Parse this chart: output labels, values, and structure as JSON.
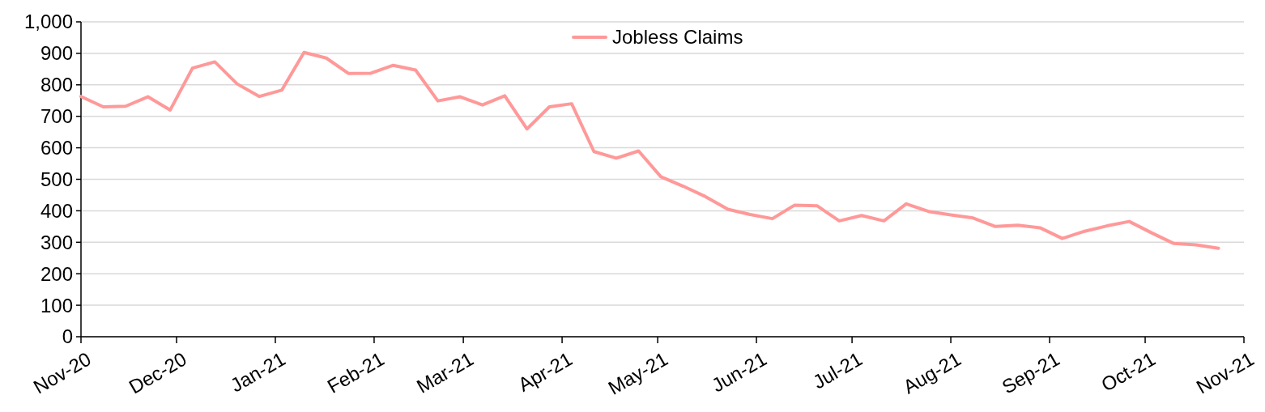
{
  "chart_data": {
    "type": "line",
    "x": [
      "2020-11-01",
      "2020-11-08",
      "2020-11-15",
      "2020-11-22",
      "2020-11-29",
      "2020-12-06",
      "2020-12-13",
      "2020-12-20",
      "2020-12-27",
      "2021-01-03",
      "2021-01-10",
      "2021-01-17",
      "2021-01-24",
      "2021-01-31",
      "2021-02-07",
      "2021-02-14",
      "2021-02-21",
      "2021-02-28",
      "2021-03-07",
      "2021-03-14",
      "2021-03-21",
      "2021-03-28",
      "2021-04-04",
      "2021-04-11",
      "2021-04-18",
      "2021-04-25",
      "2021-05-02",
      "2021-05-09",
      "2021-05-16",
      "2021-05-23",
      "2021-05-30",
      "2021-06-06",
      "2021-06-13",
      "2021-06-20",
      "2021-06-27",
      "2021-07-04",
      "2021-07-11",
      "2021-07-18",
      "2021-07-25",
      "2021-08-01",
      "2021-08-08",
      "2021-08-15",
      "2021-08-22",
      "2021-08-29",
      "2021-09-05",
      "2021-09-12",
      "2021-09-19",
      "2021-09-26",
      "2021-10-03",
      "2021-10-10",
      "2021-10-17",
      "2021-10-24"
    ],
    "series": [
      {
        "name": "Jobless Claims",
        "color": "#ff9999",
        "values": [
          763,
          730,
          732,
          762,
          720,
          853,
          873,
          803,
          763,
          783,
          903,
          885,
          836,
          837,
          862,
          847,
          749,
          762,
          736,
          765,
          660,
          730,
          740,
          588,
          567,
          590,
          508,
          478,
          445,
          405,
          388,
          375,
          418,
          416,
          368,
          385,
          368,
          422,
          398,
          387,
          377,
          350,
          354,
          346,
          312,
          335,
          352,
          366,
          330,
          296,
          292,
          281
        ]
      }
    ],
    "xlim": [
      "2020-11-01",
      "2021-11-01"
    ],
    "xticks": [
      {
        "value": "2020-11-01",
        "label": "Nov-20"
      },
      {
        "value": "2020-12-01",
        "label": "Dec-20"
      },
      {
        "value": "2021-01-01",
        "label": "Jan-21"
      },
      {
        "value": "2021-02-01",
        "label": "Feb-21"
      },
      {
        "value": "2021-03-01",
        "label": "Mar-21"
      },
      {
        "value": "2021-04-01",
        "label": "Apr-21"
      },
      {
        "value": "2021-05-01",
        "label": "May-21"
      },
      {
        "value": "2021-06-01",
        "label": "Jun-21"
      },
      {
        "value": "2021-07-01",
        "label": "Jul-21"
      },
      {
        "value": "2021-08-01",
        "label": "Aug-21"
      },
      {
        "value": "2021-09-01",
        "label": "Sep-21"
      },
      {
        "value": "2021-10-01",
        "label": "Oct-21"
      },
      {
        "value": "2021-11-01",
        "label": "Nov-21"
      }
    ],
    "ylim": [
      0,
      1000
    ],
    "yticks": [
      0,
      100,
      200,
      300,
      400,
      500,
      600,
      700,
      800,
      900,
      {
        "value": 1000,
        "label": "1,000"
      }
    ],
    "grid": "y",
    "legend": "top",
    "marker": "none",
    "line_style": "solid"
  }
}
